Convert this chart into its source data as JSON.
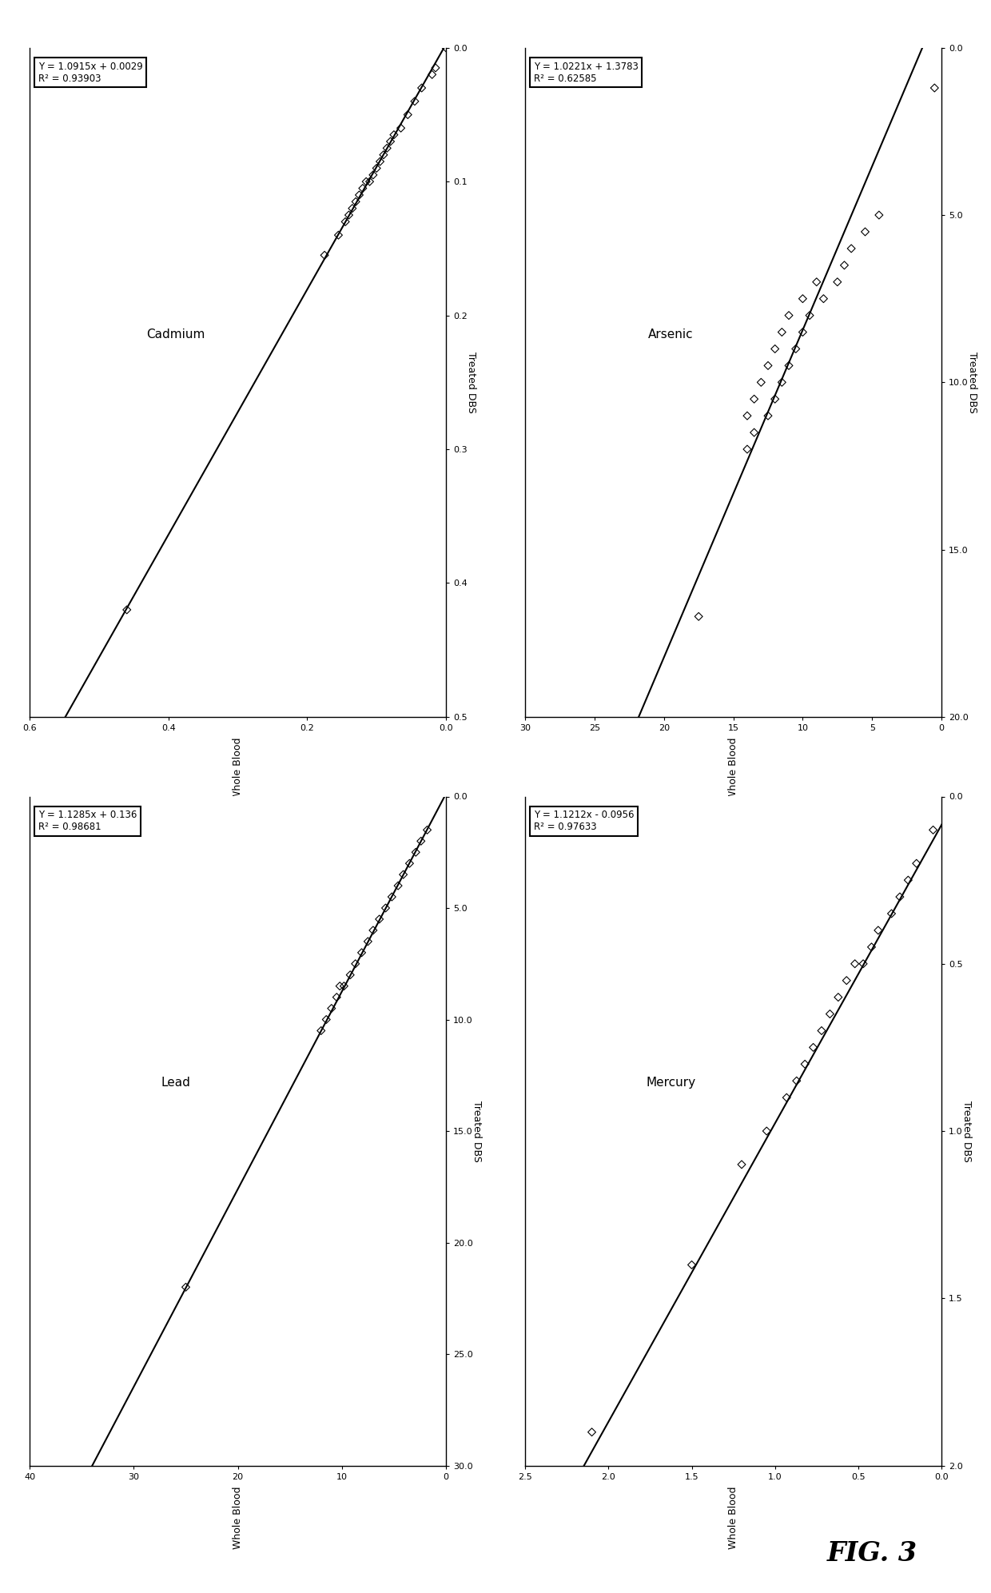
{
  "subplots": [
    {
      "title": "Cadmium",
      "equation": "Y = 1.0915x + 0.0029",
      "r2": "R² = 0.93903",
      "xlabel": "Treated DBS",
      "ylabel": "Whole Blood",
      "xlim": [
        0,
        0.5
      ],
      "ylim": [
        0,
        0.6
      ],
      "xticks": [
        0.0,
        0.1,
        0.2,
        0.3,
        0.4,
        0.5
      ],
      "yticks": [
        0.0,
        0.2,
        0.4,
        0.6
      ],
      "xtick_labels": [
        "0.0",
        "0.1",
        "0.2",
        "0.3",
        "0.4",
        "0.5"
      ],
      "ytick_labels": [
        "0.0",
        "0.2",
        "0.4",
        "0.6"
      ],
      "slope": 1.0915,
      "intercept": 0.0029,
      "data_x": [
        0.0,
        0.015,
        0.02,
        0.03,
        0.04,
        0.05,
        0.06,
        0.065,
        0.07,
        0.075,
        0.08,
        0.085,
        0.09,
        0.095,
        0.1,
        0.1,
        0.105,
        0.11,
        0.115,
        0.12,
        0.125,
        0.13,
        0.14,
        0.155,
        0.42
      ],
      "data_y": [
        0.0,
        0.015,
        0.02,
        0.035,
        0.045,
        0.055,
        0.065,
        0.075,
        0.08,
        0.085,
        0.09,
        0.095,
        0.1,
        0.105,
        0.11,
        0.115,
        0.12,
        0.125,
        0.13,
        0.135,
        0.14,
        0.145,
        0.155,
        0.175,
        0.46
      ]
    },
    {
      "title": "Arsenic",
      "equation": "Y = 1.0221x + 1.3783",
      "r2": "R² = 0.62585",
      "xlabel": "Treated DBS",
      "ylabel": "Whole Blood",
      "xlim": [
        0,
        20
      ],
      "ylim": [
        0,
        30
      ],
      "xticks": [
        0.0,
        5.0,
        10.0,
        15.0,
        20.0
      ],
      "yticks": [
        0,
        5,
        10,
        15,
        20,
        25,
        30
      ],
      "xtick_labels": [
        "0.0",
        "5.0",
        "10.0",
        "15.0",
        "20.0"
      ],
      "ytick_labels": [
        "0",
        "5",
        "10",
        "15",
        "20",
        "25",
        "30"
      ],
      "slope": 1.0221,
      "intercept": 1.3783,
      "data_x": [
        1.2,
        5.0,
        5.5,
        6.0,
        6.5,
        7.0,
        7.0,
        7.5,
        7.5,
        8.0,
        8.0,
        8.5,
        8.5,
        9.0,
        9.0,
        9.5,
        9.5,
        10.0,
        10.0,
        10.5,
        10.5,
        11.0,
        11.0,
        11.5,
        12.0,
        17.0
      ],
      "data_y": [
        0.5,
        4.5,
        5.5,
        6.5,
        7.0,
        7.5,
        9.0,
        8.5,
        10.0,
        9.5,
        11.0,
        10.0,
        11.5,
        10.5,
        12.0,
        11.0,
        12.5,
        11.5,
        13.0,
        12.0,
        13.5,
        12.5,
        14.0,
        13.5,
        14.0,
        17.5
      ]
    },
    {
      "title": "Lead",
      "equation": "Y = 1.1285x + 0.136",
      "r2": "R² = 0.98681",
      "xlabel": "Treated DBS",
      "ylabel": "Whole Blood",
      "xlim": [
        0,
        30
      ],
      "ylim": [
        0,
        40
      ],
      "xticks": [
        0.0,
        5.0,
        10.0,
        15.0,
        20.0,
        25.0,
        30.0
      ],
      "yticks": [
        0,
        10,
        20,
        30,
        40
      ],
      "xtick_labels": [
        "0.0",
        "5.0",
        "10.0",
        "15.0",
        "20.0",
        "25.0",
        "30.0"
      ],
      "ytick_labels": [
        "0",
        "10",
        "20",
        "30",
        "40"
      ],
      "slope": 1.1285,
      "intercept": 0.136,
      "data_x": [
        1.5,
        2.0,
        2.5,
        3.0,
        3.5,
        4.0,
        4.5,
        5.0,
        5.5,
        6.0,
        6.5,
        7.0,
        7.5,
        8.0,
        8.5,
        8.5,
        9.0,
        9.5,
        10.0,
        10.5,
        22.0
      ],
      "data_y": [
        1.8,
        2.4,
        2.9,
        3.5,
        4.1,
        4.6,
        5.2,
        5.8,
        6.4,
        7.0,
        7.5,
        8.1,
        8.7,
        9.2,
        9.8,
        10.2,
        10.5,
        11.0,
        11.5,
        12.0,
        25.0
      ]
    },
    {
      "title": "Mercury",
      "equation": "Y = 1.1212x - 0.0956",
      "r2": "R² = 0.97633",
      "xlabel": "Treated DBS",
      "ylabel": "Whole Blood",
      "xlim": [
        0,
        2
      ],
      "ylim": [
        0,
        2.5
      ],
      "xticks": [
        0.0,
        0.5,
        1.0,
        1.5,
        2.0
      ],
      "yticks": [
        0.0,
        0.5,
        1.0,
        1.5,
        2.0,
        2.5
      ],
      "xtick_labels": [
        "0.0",
        "0.5",
        "1.0",
        "1.5",
        "2.0"
      ],
      "ytick_labels": [
        "0.0",
        "0.5",
        "1.0",
        "1.5",
        "2.0",
        "2.5"
      ],
      "slope": 1.1212,
      "intercept": -0.0956,
      "data_x": [
        0.1,
        0.2,
        0.25,
        0.3,
        0.35,
        0.4,
        0.45,
        0.5,
        0.5,
        0.55,
        0.6,
        0.65,
        0.7,
        0.75,
        0.8,
        0.85,
        0.9,
        1.0,
        1.1,
        1.4,
        1.9
      ],
      "data_y": [
        0.05,
        0.15,
        0.2,
        0.25,
        0.3,
        0.38,
        0.42,
        0.47,
        0.52,
        0.57,
        0.62,
        0.67,
        0.72,
        0.77,
        0.82,
        0.87,
        0.93,
        1.05,
        1.2,
        1.5,
        2.1
      ]
    }
  ],
  "fig3_label": "FIG. 3",
  "background_color": "#ffffff",
  "text_color": "#000000",
  "marker": "D",
  "marker_size": 6,
  "marker_facecolor": "none",
  "marker_edgecolor": "#000000",
  "line_color": "#000000",
  "line_width": 1.5
}
